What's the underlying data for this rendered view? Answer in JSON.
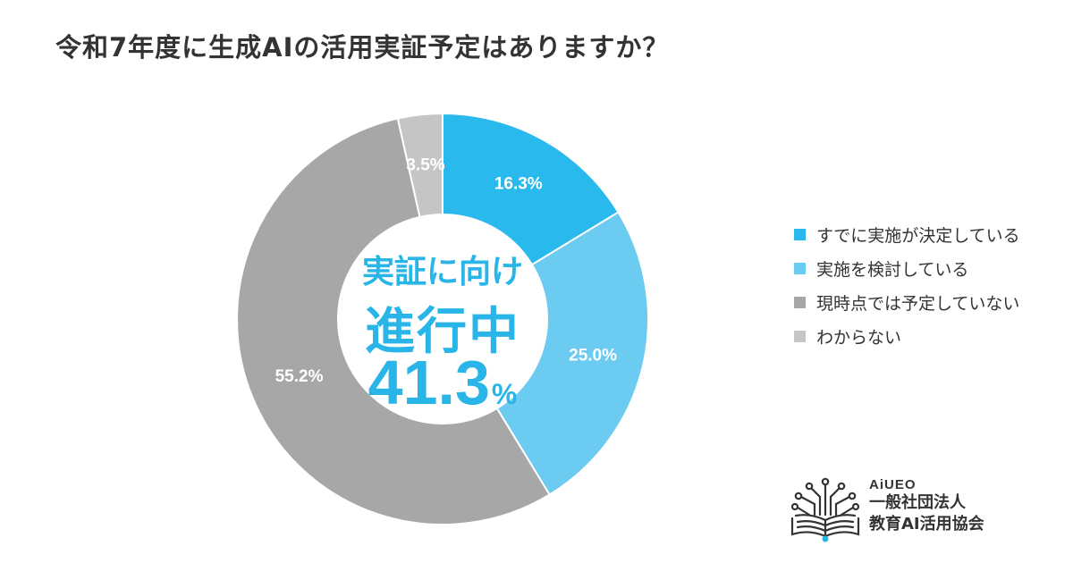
{
  "title": "令和7年度に生成AIの活用実証予定はありますか？",
  "center": {
    "line1": "実証に向け",
    "line2": "進行中",
    "value": "41.3",
    "unit": "%"
  },
  "colors": {
    "accent": "#29b5e8",
    "decided": "#29b9ec",
    "considering": "#6ccbf0",
    "not_planned": "#a7a7a7",
    "unknown": "#c5c5c5",
    "text": "#333333"
  },
  "chart_data": {
    "type": "pie",
    "donut": true,
    "title": "令和7年度に生成AIの活用実証予定はありますか？",
    "slices": [
      {
        "name": "すでに実施が決定している",
        "value": 16.3,
        "label": "16.3%",
        "color": "#29b9ec"
      },
      {
        "name": "実施を検討している",
        "value": 25.0,
        "label": "25.0%",
        "color": "#6ccbf0"
      },
      {
        "name": "現時点では予定していない",
        "value": 55.2,
        "label": "55.2%",
        "color": "#a7a7a7"
      },
      {
        "name": "わからない",
        "value": 3.5,
        "label": "3.5%",
        "color": "#c5c5c5"
      }
    ],
    "legend_position": "right"
  },
  "logo": {
    "brand": "AiUEO",
    "org_line1": "一般社団法人",
    "org_line2": "教育AI活用協会",
    "icon": "book-circuit-icon"
  }
}
